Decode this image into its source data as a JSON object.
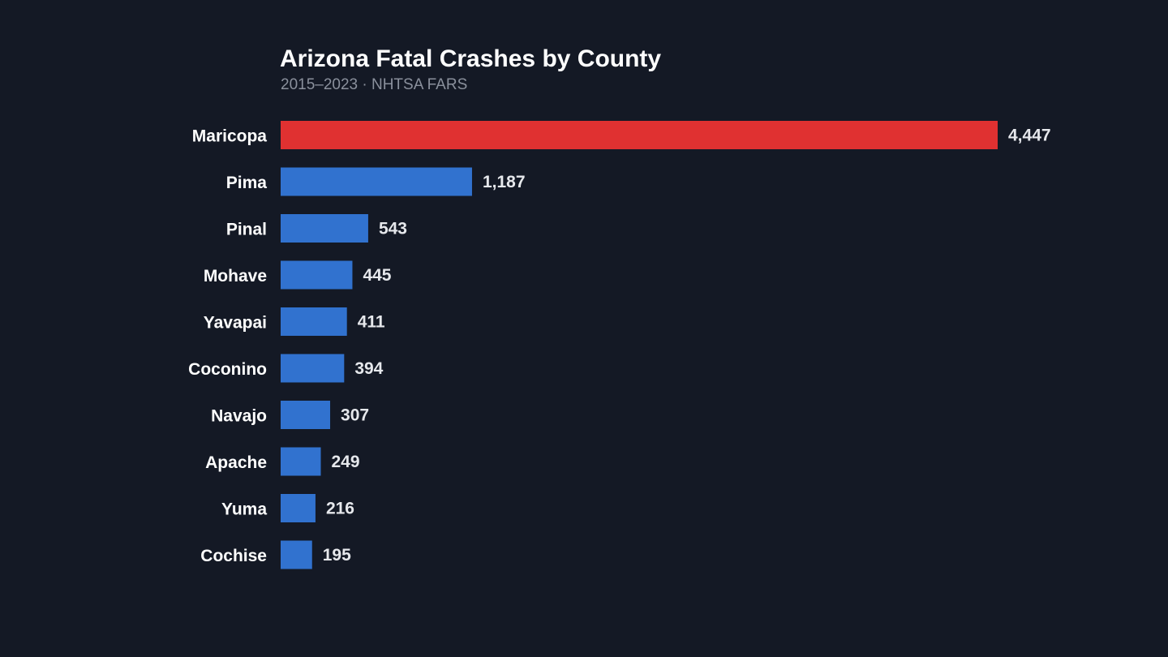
{
  "chart_data": {
    "type": "bar",
    "orientation": "horizontal",
    "title": "Arizona Fatal Crashes by County",
    "subtitle": "2015–2023 · NHTSA FARS",
    "categories": [
      "Maricopa",
      "Pima",
      "Pinal",
      "Mohave",
      "Yavapai",
      "Coconino",
      "Navajo",
      "Apache",
      "Yuma",
      "Cochise"
    ],
    "values": [
      4447,
      1187,
      543,
      445,
      411,
      394,
      307,
      249,
      216,
      195
    ],
    "value_labels": [
      "4,447",
      "1,187",
      "543",
      "445",
      "411",
      "394",
      "307",
      "249",
      "216",
      "195"
    ],
    "highlight_index": 0,
    "xlim": [
      0,
      4447
    ],
    "grid": false,
    "legend": "none",
    "colors": {
      "background": "#141925",
      "bar": "#3172cf",
      "highlight": "#e03131",
      "highlight_label": "#e03131",
      "value_label": "#e6e8ec",
      "category_label": "#ffffff",
      "title": "#ffffff",
      "subtitle": "#8a909c"
    }
  }
}
